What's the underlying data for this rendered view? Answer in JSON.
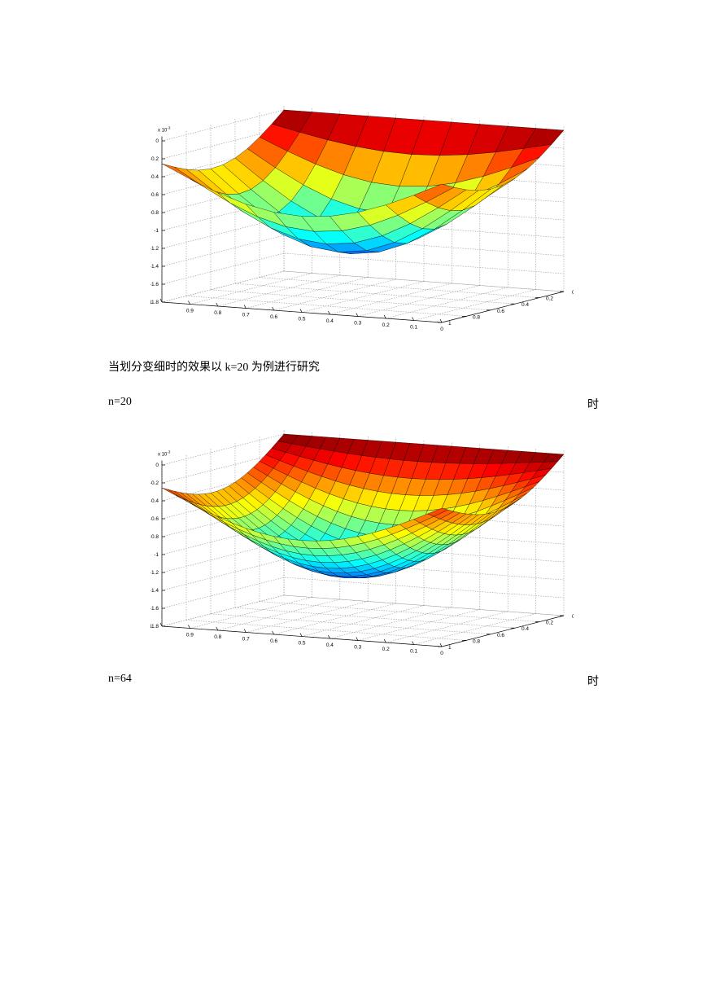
{
  "figures": [
    {
      "n": 10,
      "scale_label": "x 10",
      "scale_exp": "-3",
      "z_ticks": [
        "0",
        "-0.2",
        "-0.4",
        "-0.6",
        "-0.8",
        "-1",
        "-1.2",
        "-1.4",
        "-1.6",
        "-1.8"
      ],
      "x_ticks": [
        "1",
        "0.9",
        "0.8",
        "0.7",
        "0.6",
        "0.5",
        "0.4",
        "0.3",
        "0.2",
        "0.1",
        "0"
      ],
      "y_ticks": [
        "0",
        "0.2",
        "0.4",
        "0.6",
        "0.8",
        "1"
      ]
    },
    {
      "n": 20,
      "scale_label": "x 10",
      "scale_exp": "-3",
      "z_ticks": [
        "0",
        "-0.2",
        "-0.4",
        "-0.6",
        "-0.8",
        "-1",
        "-1.2",
        "-1.4",
        "-1.6",
        "-1.8"
      ],
      "x_ticks": [
        "1",
        "0.9",
        "0.8",
        "0.7",
        "0.6",
        "0.5",
        "0.4",
        "0.3",
        "0.2",
        "0.1",
        "0"
      ],
      "y_ticks": [
        "0",
        "0.2",
        "0.4",
        "0.6",
        "0.8",
        "1"
      ]
    }
  ],
  "text": {
    "para1": "当划分变细时的效果以 k=20 为例进行研究",
    "n20_left": "n=20",
    "n20_right": "时",
    "n64_left": "n=64",
    "n64_right": "时"
  }
}
